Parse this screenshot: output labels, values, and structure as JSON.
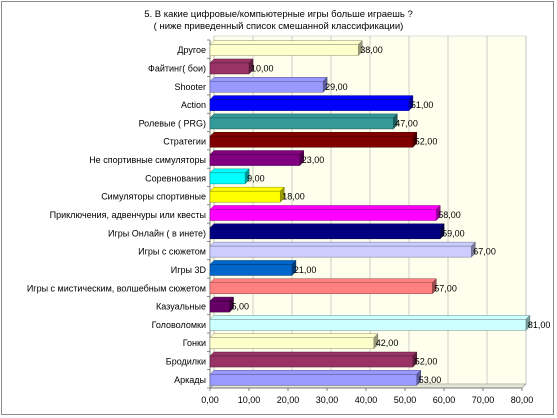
{
  "chart_data": {
    "type": "bar",
    "orientation": "horizontal",
    "title_line1": "5. В какие цифровые/компьютерные игры  больше играешь ?",
    "title_line2": "( ниже приведенный список  смешанной классификации)",
    "categories": [
      "Другое",
      "Файтинг( бои)",
      "Shooter",
      "Action",
      "Ролевые ( PRG)",
      "Стратегии",
      "Не спортивные симуляторы",
      "Соревнования",
      "Симуляторы  спортивные",
      "Приключения, адвенчуры или квесты",
      "Игры Онлайн ( в инете)",
      "Игры с сюжетом",
      "Игры  3D",
      "Игры  с мистическим, волшебным  сюжетом",
      "Казуальные",
      "Головоломки",
      "Гонки",
      "Бродилки",
      "Аркады"
    ],
    "values": [
      38,
      10,
      29,
      51,
      47,
      52,
      23,
      9,
      18,
      58,
      59,
      67,
      21,
      57,
      5,
      81,
      42,
      52,
      53
    ],
    "value_labels": [
      "38,00",
      "10,00",
      "29,00",
      "51,00",
      "47,00",
      "52,00",
      "23,00",
      "9,00",
      "18,00",
      "58,00",
      "59,00",
      "67,00",
      "21,00",
      "57,00",
      "5,00",
      "81,00",
      "42,00",
      "52,00",
      "53,00"
    ],
    "colors": [
      "#FFFFCC",
      "#993366",
      "#9999FF",
      "#0000FF",
      "#339999",
      "#800000",
      "#800080",
      "#00FFFF",
      "#FFFF00",
      "#FF00FF",
      "#000080",
      "#CCCCFF",
      "#0066CC",
      "#FF8080",
      "#660066",
      "#CCFFFF",
      "#FFFFCC",
      "#993366",
      "#9999FF"
    ],
    "x_ticks": [
      "0,00",
      "10,00",
      "20,00",
      "30,00",
      "40,00",
      "50,00",
      "60,00",
      "70,00",
      "80,00"
    ],
    "xlim": [
      0,
      80
    ],
    "grid": "vertical",
    "plot_background": "#FFFFEE",
    "gridline_color": "#B8B8B8"
  }
}
